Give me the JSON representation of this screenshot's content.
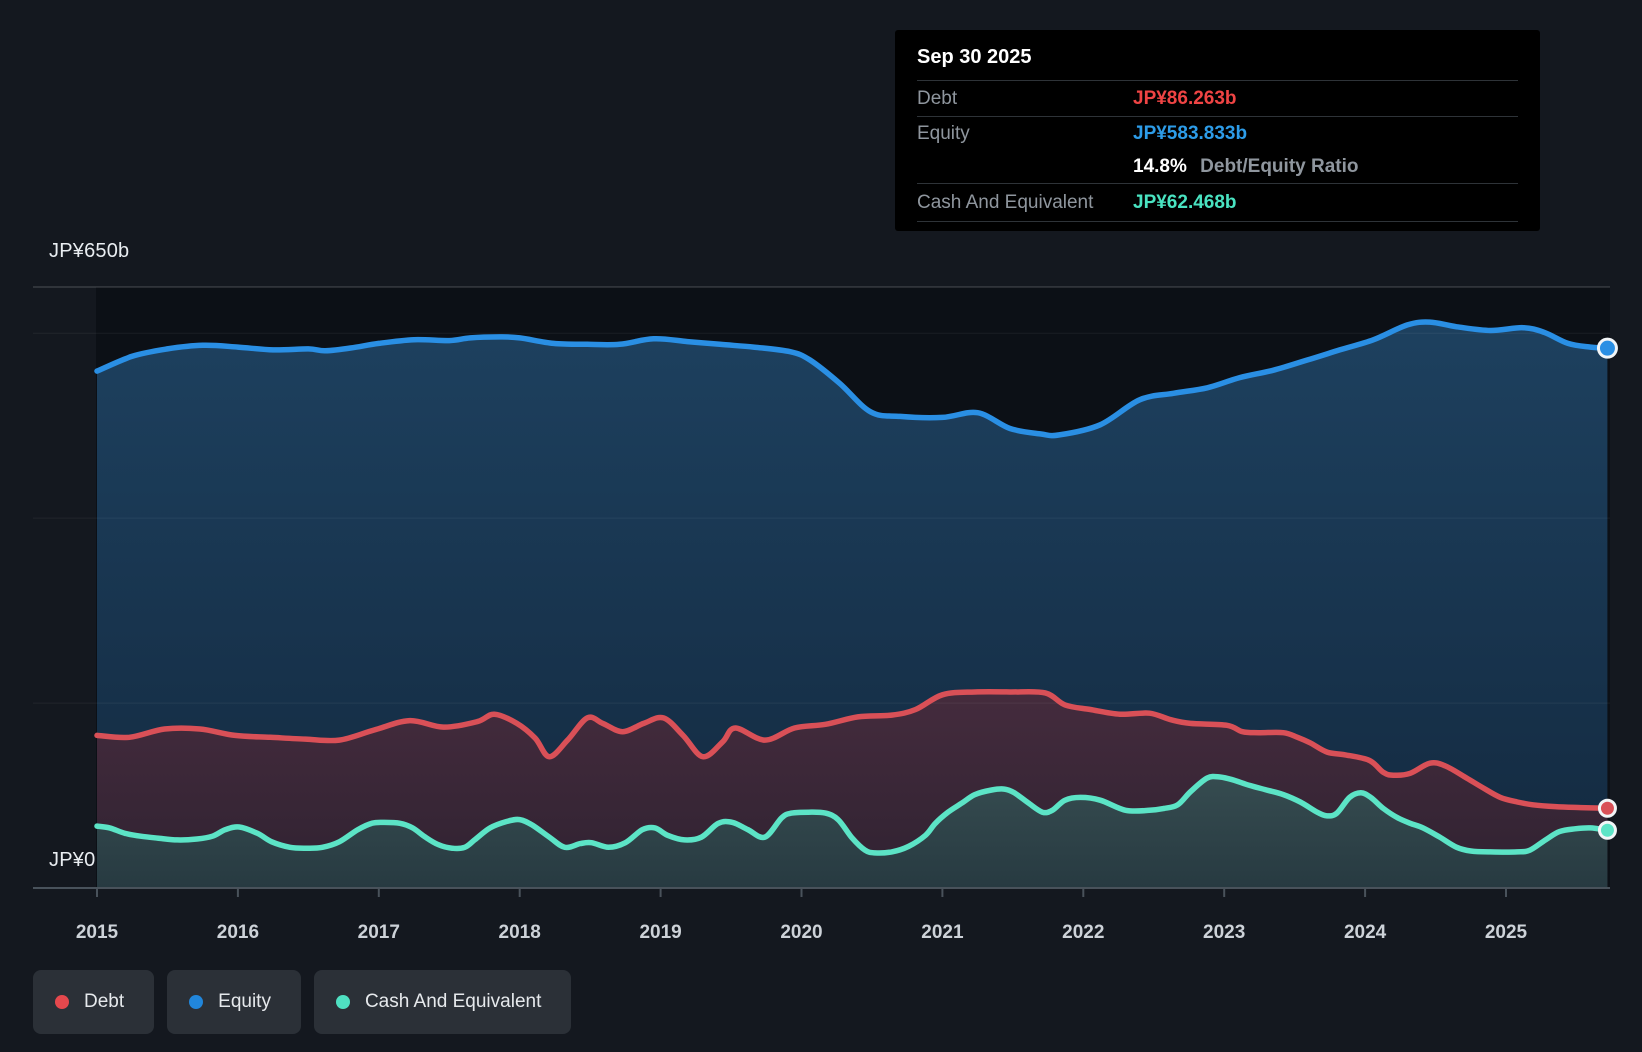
{
  "yaxis": {
    "top_label": "JP¥650b",
    "zero_label": "JP¥0"
  },
  "xaxis": {
    "ticks": [
      "2015",
      "2016",
      "2017",
      "2018",
      "2019",
      "2020",
      "2021",
      "2022",
      "2023",
      "2024",
      "2025"
    ]
  },
  "tooltip": {
    "date": "Sep 30 2025",
    "debt_label": "Debt",
    "debt_value": "JP¥86.263b",
    "equity_label": "Equity",
    "equity_value": "JP¥583.833b",
    "ratio_value": "14.8%",
    "ratio_label": "Debt/Equity Ratio",
    "cash_label": "Cash And Equivalent",
    "cash_value": "JP¥62.468b"
  },
  "legend": {
    "items": [
      {
        "id": "debt",
        "label": "Debt",
        "color": "#e5484d"
      },
      {
        "id": "equity",
        "label": "Equity",
        "color": "#2186db"
      },
      {
        "id": "cash",
        "label": "Cash And Equivalent",
        "color": "#4fe0c2"
      }
    ]
  },
  "colors": {
    "page_bg": "#14181f",
    "plot_bg": "#0c1016",
    "debt_line": "#d95057",
    "equity_line": "#2a8fe4",
    "cash_line": "#5ce4c6",
    "debt_value_text": "#ef4444",
    "equity_value_text": "#2d9ce8",
    "cash_value_text": "#49e3c1",
    "grid_major": "rgba(255,255,255,0.16)",
    "grid_minor": "rgba(255,255,255,0.06)",
    "axis": "#49525b",
    "dot_ring": "#f2f5f7"
  },
  "chart_data": {
    "type": "area",
    "title": "Debt to Equity History (JP¥ billions)",
    "x_unit": "year",
    "xlim": [
      2015.0,
      2025.72
    ],
    "ylim": [
      0,
      650
    ],
    "grid_values": [
      650,
      600,
      400,
      200
    ],
    "legend_position": "bottom",
    "latest": {
      "date": "Sep 30 2025",
      "debt": 86.263,
      "equity": 583.833,
      "cash": 62.468,
      "debt_equity_ratio_pct": 14.8
    },
    "series": [
      {
        "name": "Equity",
        "color": "#2a8fe4",
        "fill_top": "#1e4261",
        "fill_bottom": "#13293f",
        "fill_from_y_value": 650,
        "points": [
          [
            2015.0,
            559
          ],
          [
            2015.25,
            575
          ],
          [
            2015.5,
            583
          ],
          [
            2015.75,
            587
          ],
          [
            2016.0,
            585
          ],
          [
            2016.25,
            582
          ],
          [
            2016.5,
            583
          ],
          [
            2016.62,
            581
          ],
          [
            2016.8,
            584
          ],
          [
            2017.0,
            589
          ],
          [
            2017.25,
            593
          ],
          [
            2017.5,
            592
          ],
          [
            2017.65,
            595
          ],
          [
            2017.86,
            596
          ],
          [
            2018.0,
            595
          ],
          [
            2018.24,
            589
          ],
          [
            2018.48,
            588
          ],
          [
            2018.71,
            588
          ],
          [
            2018.95,
            594
          ],
          [
            2019.19,
            591
          ],
          [
            2019.42,
            588
          ],
          [
            2019.66,
            585
          ],
          [
            2019.92,
            580
          ],
          [
            2020.06,
            571
          ],
          [
            2020.27,
            546
          ],
          [
            2020.49,
            515
          ],
          [
            2020.7,
            510
          ],
          [
            2021.0,
            509
          ],
          [
            2021.25,
            514
          ],
          [
            2021.48,
            497
          ],
          [
            2021.7,
            491
          ],
          [
            2021.83,
            490
          ],
          [
            2022.12,
            501
          ],
          [
            2022.4,
            528
          ],
          [
            2022.64,
            535
          ],
          [
            2022.88,
            541
          ],
          [
            2023.11,
            552
          ],
          [
            2023.35,
            560
          ],
          [
            2023.59,
            571
          ],
          [
            2023.82,
            582
          ],
          [
            2024.06,
            593
          ],
          [
            2024.3,
            609
          ],
          [
            2024.46,
            612
          ],
          [
            2024.65,
            607
          ],
          [
            2024.89,
            603
          ],
          [
            2025.12,
            606
          ],
          [
            2025.27,
            601
          ],
          [
            2025.44,
            589
          ],
          [
            2025.6,
            585
          ],
          [
            2025.72,
            583.833
          ]
        ]
      },
      {
        "name": "Debt",
        "color": "#d95057",
        "fill_top": "#482d3f",
        "fill_bottom": "#2f2231",
        "fill_from_y_value": 246,
        "points": [
          [
            2015.0,
            165
          ],
          [
            2015.23,
            163
          ],
          [
            2015.48,
            172
          ],
          [
            2015.73,
            172
          ],
          [
            2015.98,
            165
          ],
          [
            2016.23,
            163
          ],
          [
            2016.48,
            161
          ],
          [
            2016.72,
            160
          ],
          [
            2016.97,
            171
          ],
          [
            2017.22,
            181
          ],
          [
            2017.46,
            174
          ],
          [
            2017.7,
            180
          ],
          [
            2017.82,
            188
          ],
          [
            2017.98,
            178
          ],
          [
            2018.11,
            162
          ],
          [
            2018.21,
            142
          ],
          [
            2018.34,
            160
          ],
          [
            2018.48,
            184
          ],
          [
            2018.59,
            178
          ],
          [
            2018.73,
            169
          ],
          [
            2018.88,
            178
          ],
          [
            2019.02,
            184
          ],
          [
            2019.16,
            165
          ],
          [
            2019.3,
            142
          ],
          [
            2019.44,
            158
          ],
          [
            2019.53,
            173
          ],
          [
            2019.74,
            160
          ],
          [
            2019.95,
            173
          ],
          [
            2020.17,
            177
          ],
          [
            2020.4,
            185
          ],
          [
            2020.64,
            187
          ],
          [
            2020.81,
            193
          ],
          [
            2021.0,
            209
          ],
          [
            2021.23,
            212
          ],
          [
            2021.48,
            212
          ],
          [
            2021.73,
            211
          ],
          [
            2021.87,
            198
          ],
          [
            2022.05,
            193
          ],
          [
            2022.26,
            188
          ],
          [
            2022.47,
            189
          ],
          [
            2022.62,
            182
          ],
          [
            2022.76,
            178
          ],
          [
            2023.02,
            176
          ],
          [
            2023.13,
            169
          ],
          [
            2023.25,
            168
          ],
          [
            2023.42,
            168
          ],
          [
            2023.52,
            163
          ],
          [
            2023.61,
            157
          ],
          [
            2023.73,
            147
          ],
          [
            2023.86,
            144
          ],
          [
            2024.03,
            138
          ],
          [
            2024.13,
            125
          ],
          [
            2024.2,
            122
          ],
          [
            2024.32,
            124
          ],
          [
            2024.46,
            135
          ],
          [
            2024.57,
            132
          ],
          [
            2024.72,
            119
          ],
          [
            2024.84,
            108
          ],
          [
            2024.96,
            98
          ],
          [
            2025.08,
            93
          ],
          [
            2025.19,
            90
          ],
          [
            2025.35,
            88
          ],
          [
            2025.53,
            87
          ],
          [
            2025.72,
            86.263
          ]
        ]
      },
      {
        "name": "Cash And Equivalent",
        "color": "#5ce4c6",
        "fill_top": "#374d51",
        "fill_bottom": "#273a41",
        "fill_from_y_value": 128,
        "points": [
          [
            2015.0,
            67
          ],
          [
            2015.09,
            65
          ],
          [
            2015.2,
            59
          ],
          [
            2015.31,
            56
          ],
          [
            2015.43,
            54
          ],
          [
            2015.57,
            52
          ],
          [
            2015.71,
            53
          ],
          [
            2015.82,
            56
          ],
          [
            2015.91,
            63
          ],
          [
            2016.01,
            66
          ],
          [
            2016.14,
            59
          ],
          [
            2016.24,
            50
          ],
          [
            2016.37,
            44
          ],
          [
            2016.49,
            43
          ],
          [
            2016.6,
            44
          ],
          [
            2016.72,
            50
          ],
          [
            2016.85,
            63
          ],
          [
            2016.95,
            70
          ],
          [
            2017.04,
            71
          ],
          [
            2017.15,
            70
          ],
          [
            2017.24,
            65
          ],
          [
            2017.33,
            55
          ],
          [
            2017.42,
            47
          ],
          [
            2017.52,
            43
          ],
          [
            2017.61,
            44
          ],
          [
            2017.68,
            52
          ],
          [
            2017.79,
            65
          ],
          [
            2017.91,
            72
          ],
          [
            2018.0,
            74
          ],
          [
            2018.09,
            68
          ],
          [
            2018.21,
            55
          ],
          [
            2018.32,
            44
          ],
          [
            2018.43,
            48
          ],
          [
            2018.51,
            49
          ],
          [
            2018.63,
            44
          ],
          [
            2018.75,
            49
          ],
          [
            2018.87,
            63
          ],
          [
            2018.96,
            65
          ],
          [
            2019.05,
            57
          ],
          [
            2019.17,
            52
          ],
          [
            2019.29,
            55
          ],
          [
            2019.41,
            70
          ],
          [
            2019.51,
            71
          ],
          [
            2019.62,
            63
          ],
          [
            2019.74,
            55
          ],
          [
            2019.86,
            76
          ],
          [
            2019.93,
            81
          ],
          [
            2020.05,
            82
          ],
          [
            2020.17,
            81
          ],
          [
            2020.26,
            74
          ],
          [
            2020.36,
            54
          ],
          [
            2020.45,
            41
          ],
          [
            2020.52,
            38
          ],
          [
            2020.64,
            39
          ],
          [
            2020.76,
            45
          ],
          [
            2020.88,
            57
          ],
          [
            2020.95,
            70
          ],
          [
            2021.04,
            82
          ],
          [
            2021.14,
            92
          ],
          [
            2021.23,
            101
          ],
          [
            2021.35,
            106
          ],
          [
            2021.44,
            107
          ],
          [
            2021.51,
            103
          ],
          [
            2021.61,
            92
          ],
          [
            2021.71,
            82
          ],
          [
            2021.78,
            84
          ],
          [
            2021.87,
            95
          ],
          [
            2021.98,
            98
          ],
          [
            2022.12,
            95
          ],
          [
            2022.3,
            84
          ],
          [
            2022.47,
            84
          ],
          [
            2022.57,
            86
          ],
          [
            2022.67,
            90
          ],
          [
            2022.76,
            104
          ],
          [
            2022.88,
            119
          ],
          [
            2022.97,
            120
          ],
          [
            2023.06,
            117
          ],
          [
            2023.18,
            111
          ],
          [
            2023.3,
            106
          ],
          [
            2023.42,
            101
          ],
          [
            2023.54,
            93
          ],
          [
            2023.66,
            82
          ],
          [
            2023.73,
            78
          ],
          [
            2023.8,
            81
          ],
          [
            2023.89,
            98
          ],
          [
            2023.97,
            103
          ],
          [
            2024.04,
            98
          ],
          [
            2024.13,
            86
          ],
          [
            2024.23,
            76
          ],
          [
            2024.32,
            70
          ],
          [
            2024.41,
            65
          ],
          [
            2024.53,
            55
          ],
          [
            2024.65,
            44
          ],
          [
            2024.75,
            40
          ],
          [
            2024.89,
            39
          ],
          [
            2025.08,
            39
          ],
          [
            2025.17,
            41
          ],
          [
            2025.28,
            52
          ],
          [
            2025.38,
            61
          ],
          [
            2025.49,
            64
          ],
          [
            2025.6,
            65
          ],
          [
            2025.72,
            62.468
          ]
        ]
      }
    ]
  }
}
